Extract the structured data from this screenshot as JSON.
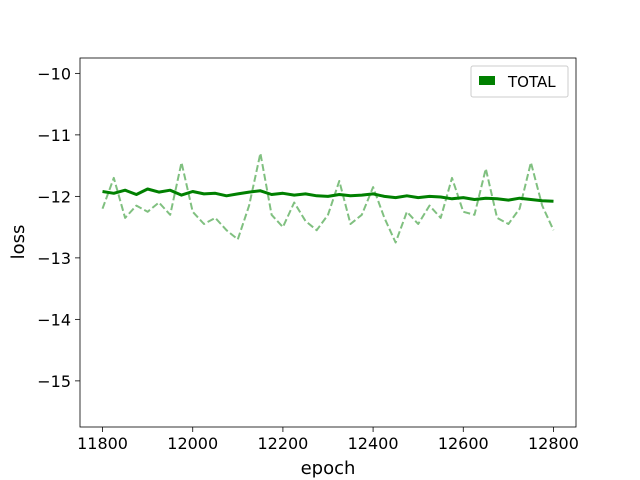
{
  "chart_data": {
    "type": "line",
    "title": "",
    "xlabel": "epoch",
    "ylabel": "loss",
    "xlim": [
      11750,
      12850
    ],
    "ylim": [
      -15.75,
      -9.75
    ],
    "x_ticks": [
      11800,
      12000,
      12200,
      12400,
      12600,
      12800
    ],
    "x_tick_labels": [
      "11800",
      "12000",
      "12200",
      "12400",
      "12600",
      "12800"
    ],
    "y_ticks": [
      -10,
      -11,
      -12,
      -13,
      -14,
      -15
    ],
    "y_tick_labels": [
      "−10",
      "−11",
      "−12",
      "−13",
      "−14",
      "−15"
    ],
    "grid": false,
    "legend": {
      "placement": "top-right",
      "entries": [
        {
          "label": "TOTAL",
          "color": "#008000"
        }
      ]
    },
    "series": [
      {
        "name": "TOTAL",
        "style": "solid",
        "color": "#008000",
        "x": [
          11800,
          11825,
          11850,
          11875,
          11900,
          11925,
          11950,
          11975,
          12000,
          12025,
          12050,
          12075,
          12100,
          12125,
          12150,
          12175,
          12200,
          12225,
          12250,
          12275,
          12300,
          12325,
          12350,
          12375,
          12400,
          12425,
          12450,
          12475,
          12500,
          12525,
          12550,
          12575,
          12600,
          12625,
          12650,
          12675,
          12700,
          12725,
          12750,
          12775,
          12800
        ],
        "y": [
          -11.92,
          -11.95,
          -11.9,
          -11.97,
          -11.88,
          -11.93,
          -11.9,
          -11.98,
          -11.92,
          -11.96,
          -11.95,
          -11.99,
          -11.96,
          -11.93,
          -11.91,
          -11.97,
          -11.95,
          -11.98,
          -11.96,
          -11.99,
          -12.0,
          -11.97,
          -11.99,
          -11.98,
          -11.96,
          -12.0,
          -12.02,
          -11.99,
          -12.02,
          -12.0,
          -12.01,
          -12.04,
          -12.02,
          -12.05,
          -12.03,
          -12.04,
          -12.06,
          -12.03,
          -12.05,
          -12.07,
          -12.08
        ]
      },
      {
        "name": "",
        "style": "dashed",
        "color": "#80c080",
        "x": [
          11800,
          11825,
          11850,
          11875,
          11900,
          11925,
          11950,
          11975,
          12000,
          12025,
          12050,
          12075,
          12100,
          12125,
          12150,
          12175,
          12200,
          12225,
          12250,
          12275,
          12300,
          12325,
          12350,
          12375,
          12400,
          12425,
          12450,
          12475,
          12500,
          12525,
          12550,
          12575,
          12600,
          12625,
          12650,
          12675,
          12700,
          12725,
          12750,
          12775,
          12800
        ],
        "y": [
          -12.2,
          -11.7,
          -12.35,
          -12.15,
          -12.25,
          -12.1,
          -12.3,
          -11.45,
          -12.25,
          -12.45,
          -12.35,
          -12.55,
          -12.7,
          -12.15,
          -11.3,
          -12.3,
          -12.5,
          -12.1,
          -12.4,
          -12.55,
          -12.3,
          -11.75,
          -12.45,
          -12.3,
          -11.85,
          -12.35,
          -12.75,
          -12.25,
          -12.45,
          -12.15,
          -12.35,
          -11.7,
          -12.25,
          -12.3,
          -11.55,
          -12.35,
          -12.45,
          -12.2,
          -11.45,
          -12.15,
          -12.55
        ]
      }
    ]
  }
}
